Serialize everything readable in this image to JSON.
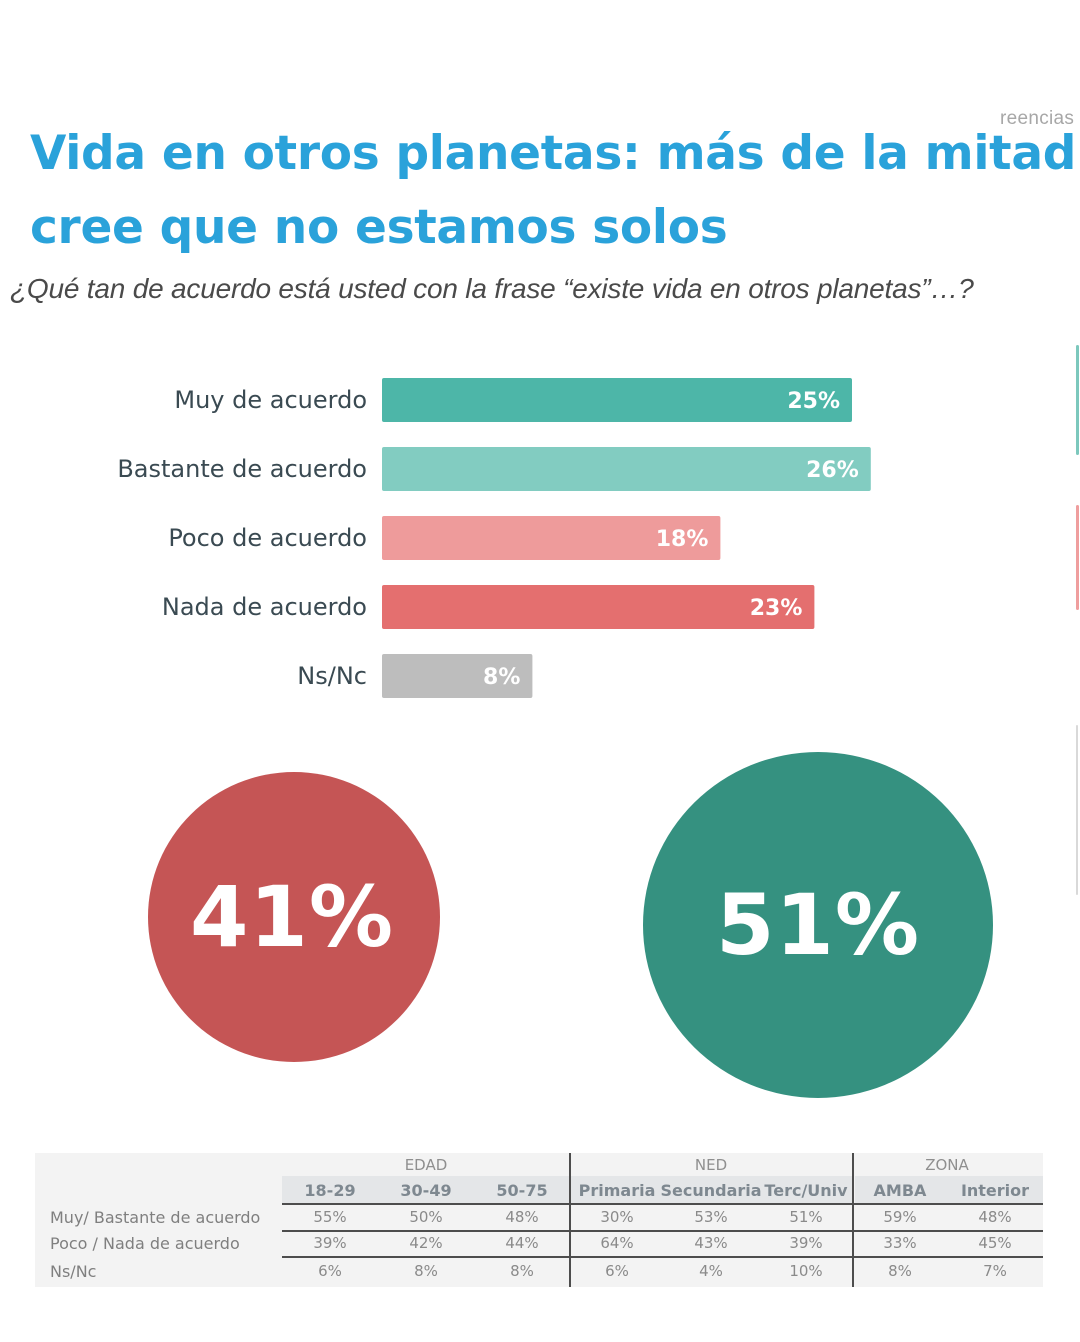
{
  "brand_fragment": "reencias",
  "header": {
    "title_line1": "Vida en otros planetas: más de la mitad",
    "title_line2": "cree que no estamos solos",
    "question": "¿Qué tan de acuerdo está usted con la frase “existe vida en otros planetas”…?"
  },
  "colors": {
    "title": "#2aa2da",
    "muy": "#4db6a8",
    "bastante": "#82ccc1",
    "poco": "#ee9b9b",
    "nada": "#e46f6f",
    "nsnc": "#bdbdbd",
    "circle_negative": "#c55555",
    "circle_positive": "#359180"
  },
  "chart_data": {
    "type": "bar",
    "orientation": "horizontal",
    "title": "",
    "xlabel": "",
    "ylabel": "",
    "xlim": [
      0,
      30
    ],
    "grid": false,
    "categories": [
      "Muy de acuerdo",
      "Bastante de acuerdo",
      "Poco de acuerdo",
      "Nada de acuerdo",
      "Ns/Nc"
    ],
    "values": [
      25,
      26,
      18,
      23,
      8
    ],
    "value_labels": [
      "25%",
      "26%",
      "18%",
      "23%",
      "8%"
    ],
    "bar_colors": [
      "#4db6a8",
      "#82ccc1",
      "#ee9b9b",
      "#e46f6f",
      "#bdbdbd"
    ]
  },
  "summary": {
    "negative_total": "41%",
    "positive_total": "51%"
  },
  "crosstab": {
    "groups": [
      {
        "label": "EDAD",
        "columns": [
          "18-29",
          "30-49",
          "50-75"
        ]
      },
      {
        "label": "NED",
        "columns": [
          "Primaria",
          "Secundaria",
          "Terc/Univ"
        ]
      },
      {
        "label": "ZONA",
        "columns": [
          "AMBA",
          "Interior"
        ]
      }
    ],
    "rows": [
      {
        "label": "Muy/ Bastante de acuerdo",
        "values": [
          "55%",
          "50%",
          "48%",
          "30%",
          "53%",
          "51%",
          "59%",
          "48%"
        ]
      },
      {
        "label": "Poco / Nada de acuerdo",
        "values": [
          "39%",
          "42%",
          "44%",
          "64%",
          "43%",
          "39%",
          "33%",
          "45%"
        ]
      },
      {
        "label": "Ns/Nc",
        "values": [
          "6%",
          "8%",
          "8%",
          "6%",
          "4%",
          "10%",
          "8%",
          "7%"
        ]
      }
    ]
  }
}
